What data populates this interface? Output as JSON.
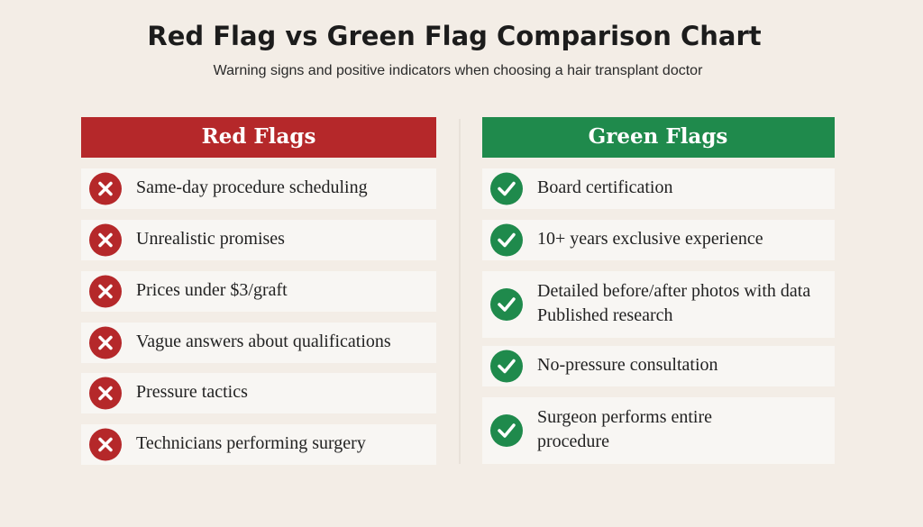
{
  "header": {
    "title": "Red Flag vs Green Flag Comparison Chart",
    "subtitle": "Warning signs and positive indicators when choosing a hair transplant doctor"
  },
  "red_flags": {
    "title": "Red Flags",
    "items": [
      [
        "Same-day procedure scheduling"
      ],
      [
        "Unrealistic promises"
      ],
      [
        "Prices under $3/graft"
      ],
      [
        "Vague answers about qualifications"
      ],
      [
        "Pressure tactics"
      ],
      [
        "Technicians performing surgery"
      ]
    ]
  },
  "green_flags": {
    "title": "Green Flags",
    "items": [
      [
        "Board certification"
      ],
      [
        "10+ years exclusive experience"
      ],
      [
        "Detailed before/after photos with data",
        "Published research"
      ],
      [
        "No-pressure consultation"
      ],
      [
        "Surgeon performs entire",
        "procedure"
      ]
    ]
  }
}
